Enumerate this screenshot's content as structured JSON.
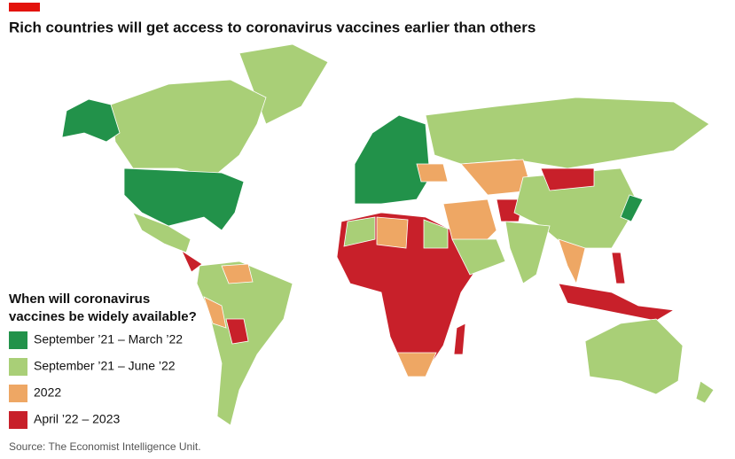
{
  "header": {
    "title": "Rich countries will get access to coronavirus vaccines earlier than others"
  },
  "legend": {
    "title": "When will coronavirus vaccines be widely available?",
    "items": [
      {
        "label": "September ’21 – March ’22",
        "color": "#22924a"
      },
      {
        "label": "September ’21 – June ’22",
        "color": "#a9cf77"
      },
      {
        "label": "2022",
        "color": "#eea764"
      },
      {
        "label": "April ’22 – 2023",
        "color": "#c8202a"
      }
    ]
  },
  "source": "Source: The Economist Intelligence Unit."
}
